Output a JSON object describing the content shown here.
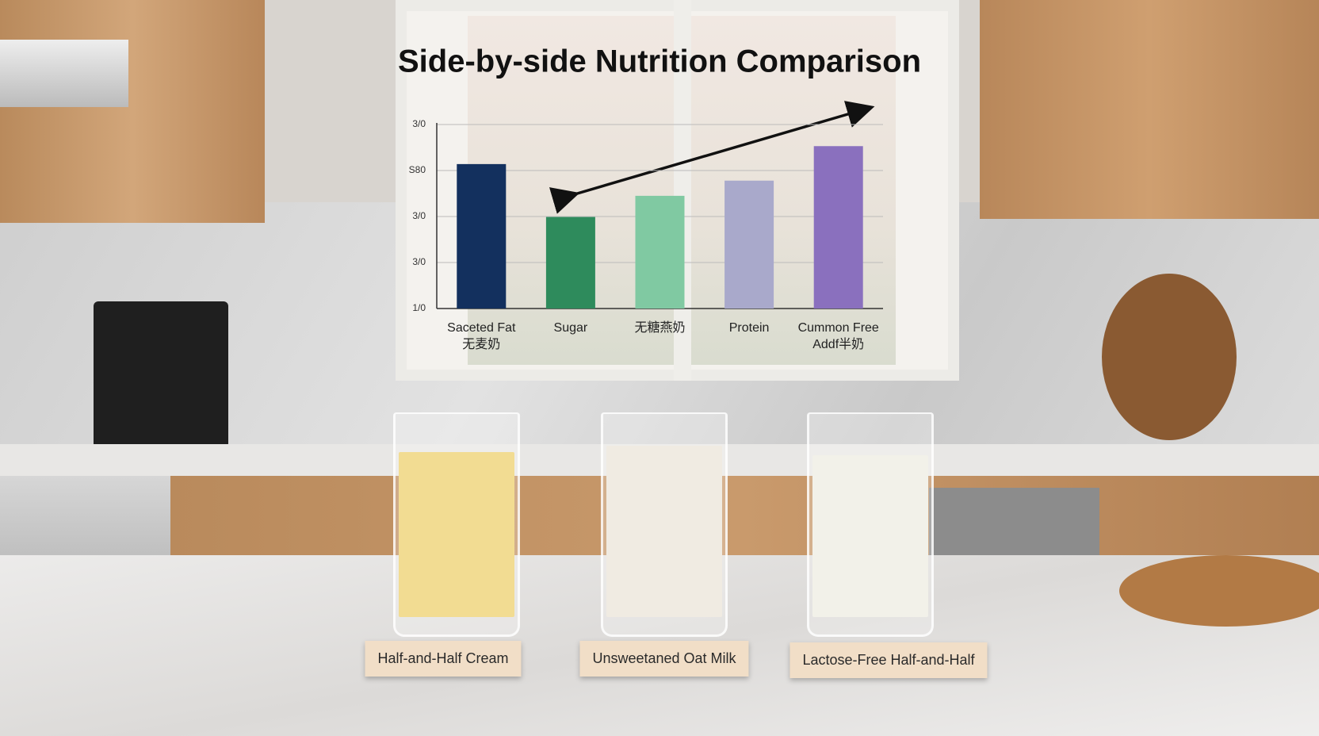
{
  "chart_data": {
    "type": "bar",
    "title": "Side-by-side Nutrition Comparison",
    "categories": [
      "Saceted Fat\n无麦奶",
      "Sugar",
      "无糖燕奶",
      "Protein",
      "Cummon Free\nAddf半奶"
    ],
    "values": [
      31.4,
      19.9,
      24.5,
      27.8,
      35.3
    ],
    "colors": [
      "#13305e",
      "#2e8b5c",
      "#80c9a2",
      "#a9a9cb",
      "#8a70be"
    ],
    "ylim": [
      0,
      40
    ],
    "yticks": [
      {
        "value": 0,
        "label": "1/0"
      },
      {
        "value": 10,
        "label": "3/0"
      },
      {
        "value": 20,
        "label": "3/0"
      },
      {
        "value": 30,
        "label": "S80"
      },
      {
        "value": 40,
        "label": "3/0"
      }
    ],
    "grid": true,
    "annotations": [
      "Half-and-Half Cream",
      "Unsweetaned Oat Milk",
      "Lactose-Free Half-and-Half"
    ]
  }
}
